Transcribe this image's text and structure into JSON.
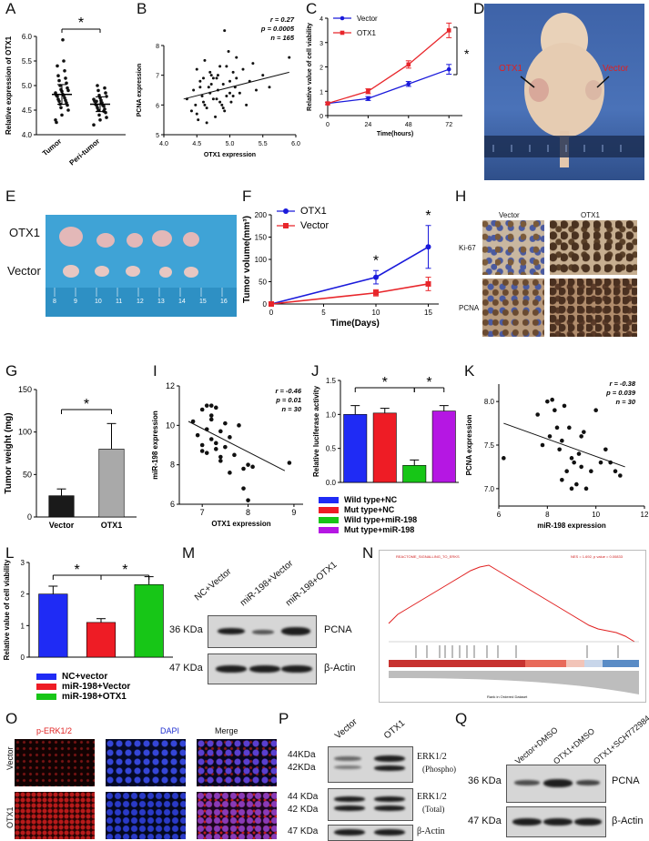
{
  "panels": {
    "A": "A",
    "B": "B",
    "C": "C",
    "D": "D",
    "E": "E",
    "F": "F",
    "G": "G",
    "H": "H",
    "I": "I",
    "J": "J",
    "K": "K",
    "L": "L",
    "M": "M",
    "N": "N",
    "O": "O",
    "P": "P",
    "Q": "Q"
  },
  "chart_data": [
    {
      "id": "A",
      "type": "scatter",
      "title": "",
      "ylabel": "Relative expression of OTX1",
      "ylim": [
        4.0,
        6.0
      ],
      "yticks": [
        "4.0",
        "4.5",
        "5.0",
        "5.5",
        "6.0"
      ],
      "categories": [
        "Tumor",
        "Peri-tumor"
      ],
      "values": [
        [
          4.3,
          4.4,
          4.5,
          4.55,
          4.6,
          4.62,
          4.65,
          4.68,
          4.7,
          4.72,
          4.75,
          4.78,
          4.8,
          4.8,
          4.82,
          4.85,
          4.88,
          4.9,
          4.92,
          4.95,
          5.0,
          5.05,
          5.1,
          5.15,
          5.2,
          5.3,
          5.4,
          5.5,
          4.25,
          5.93
        ],
        [
          4.2,
          4.3,
          4.35,
          4.4,
          4.45,
          4.5,
          4.52,
          4.55,
          4.58,
          4.6,
          4.6,
          4.62,
          4.65,
          4.68,
          4.7,
          4.72,
          4.75,
          4.78,
          4.8,
          4.85,
          4.9,
          4.95,
          5.0,
          4.48,
          4.68
        ]
      ],
      "means": [
        4.82,
        4.62
      ],
      "sem": [
        0.2,
        0.15
      ],
      "sig": "*"
    },
    {
      "id": "B",
      "type": "scatter",
      "xlabel": "OTX1 expression",
      "ylabel": "PCNA expression",
      "xlim": [
        4.0,
        6.0
      ],
      "ylim": [
        5,
        8
      ],
      "xticks": [
        "4.0",
        "4.5",
        "5.0",
        "5.5",
        "6.0"
      ],
      "yticks": [
        "5",
        "6",
        "7",
        "8"
      ],
      "stats": [
        "r = 0.27",
        "p = 0.0005",
        "n = 165"
      ],
      "trend": [
        [
          4.3,
          6.2
        ],
        [
          5.9,
          7.1
        ]
      ],
      "x": [
        4.35,
        4.42,
        4.45,
        4.48,
        4.5,
        4.52,
        4.55,
        4.58,
        4.6,
        4.62,
        4.65,
        4.68,
        4.7,
        4.72,
        4.75,
        4.78,
        4.8,
        4.82,
        4.85,
        4.88,
        4.9,
        4.92,
        4.95,
        4.98,
        5.0,
        5.02,
        5.05,
        5.08,
        5.1,
        5.15,
        5.2,
        5.25,
        5.3,
        5.35,
        5.4,
        5.5,
        5.6,
        5.9,
        4.5,
        4.6,
        4.7,
        4.8,
        4.9,
        5.0,
        5.1,
        4.55,
        4.65,
        4.75,
        4.85,
        4.95,
        5.05,
        4.62,
        4.72,
        4.82,
        4.92
      ],
      "y": [
        6.2,
        5.8,
        6.5,
        6.0,
        7.2,
        5.5,
        6.8,
        6.3,
        6.1,
        7.5,
        5.9,
        6.6,
        6.4,
        7.0,
        6.2,
        5.6,
        6.9,
        6.5,
        7.3,
        6.0,
        6.7,
        8.5,
        6.3,
        7.8,
        6.8,
        6.1,
        7.1,
        6.6,
        6.9,
        6.4,
        7.2,
        6.0,
        6.8,
        7.4,
        6.5,
        7.0,
        6.6,
        7.6,
        5.7,
        6.9,
        7.1,
        6.2,
        5.9,
        6.4,
        7.6,
        6.6,
        5.4,
        6.9,
        6.1,
        7.3,
        6.3,
        6.0,
        6.7,
        7.0,
        5.8
      ]
    },
    {
      "id": "C",
      "type": "line",
      "xlabel": "Time(hours)",
      "ylabel": "Relative value of cell viability",
      "x": [
        0,
        24,
        48,
        72
      ],
      "xlim": [
        0,
        80
      ],
      "ylim": [
        0,
        4
      ],
      "xticks": [
        "0",
        "24",
        "48",
        "72"
      ],
      "yticks": [
        "0",
        "1",
        "2",
        "3",
        "4"
      ],
      "series": [
        {
          "name": "Vector",
          "values": [
            0.5,
            0.7,
            1.3,
            1.9
          ],
          "err": [
            0.05,
            0.08,
            0.1,
            0.2
          ],
          "color": "#1a1adb"
        },
        {
          "name": "OTX1",
          "values": [
            0.5,
            1.0,
            2.1,
            3.5
          ],
          "err": [
            0.05,
            0.1,
            0.15,
            0.3
          ],
          "color": "#e8262b"
        }
      ],
      "sig": "*"
    },
    {
      "id": "F",
      "type": "line",
      "xlabel": "Time(Days)",
      "ylabel": "Tumor volume(mm³)",
      "x": [
        0,
        10,
        15
      ],
      "xlim": [
        0,
        16
      ],
      "ylim": [
        0,
        200
      ],
      "xticks": [
        "0",
        "5",
        "10",
        "15"
      ],
      "yticks": [
        "0",
        "50",
        "100",
        "150",
        "200"
      ],
      "series": [
        {
          "name": "OTX1",
          "values": [
            0,
            60,
            128
          ],
          "err": [
            0,
            15,
            48
          ],
          "color": "#1a1adb"
        },
        {
          "name": "Vector",
          "values": [
            0,
            25,
            45
          ],
          "err": [
            0,
            7,
            15
          ],
          "color": "#e8262b"
        }
      ],
      "sig": [
        "*",
        "*"
      ]
    },
    {
      "id": "G",
      "type": "bar",
      "ylabel": "Tumor weight (mg)",
      "categories": [
        "Vector",
        "OTX1"
      ],
      "values": [
        25,
        80
      ],
      "err": [
        8,
        30
      ],
      "ylim": [
        0,
        150
      ],
      "yticks": [
        "0",
        "50",
        "100",
        "150"
      ],
      "sig": "*"
    },
    {
      "id": "I",
      "type": "scatter",
      "xlabel": "OTX1 expression",
      "ylabel": "miR-198 expression",
      "xlim": [
        6.5,
        9.2
      ],
      "ylim": [
        6,
        12
      ],
      "xticks": [
        "7",
        "8",
        "9"
      ],
      "yticks": [
        "6",
        "8",
        "10",
        "12"
      ],
      "stats": [
        "r = -0.46",
        "p = 0.01",
        "n = 30"
      ],
      "trend": [
        [
          6.7,
          10.2
        ],
        [
          8.8,
          7.7
        ]
      ],
      "x": [
        6.8,
        6.9,
        7.0,
        7.0,
        7.1,
        7.1,
        7.2,
        7.2,
        7.3,
        7.3,
        7.4,
        7.4,
        7.5,
        7.5,
        7.6,
        7.7,
        7.8,
        7.9,
        8.0,
        8.0,
        8.1,
        7.0,
        7.1,
        7.2,
        7.3,
        7.4,
        7.6,
        8.9,
        7.9,
        7.2
      ],
      "y": [
        10.2,
        9.5,
        10.8,
        9.0,
        11.0,
        8.6,
        10.5,
        9.3,
        8.8,
        10.9,
        9.7,
        8.2,
        10.1,
        8.9,
        9.4,
        8.5,
        10.0,
        7.8,
        8.0,
        6.2,
        7.9,
        8.7,
        9.8,
        10.3,
        9.1,
        8.4,
        7.6,
        8.1,
        6.8,
        11.0
      ]
    },
    {
      "id": "J",
      "type": "bar",
      "ylabel": "Relative luciferase activity",
      "categories": [
        "Wild type+NC",
        "Mut type+NC",
        "Wild type+miR-198",
        "Mut type+miR-198"
      ],
      "values": [
        1.0,
        1.02,
        0.25,
        1.05
      ],
      "err": [
        0.13,
        0.07,
        0.08,
        0.08
      ],
      "colors": [
        "#1f2bf5",
        "#ee1c25",
        "#17c617",
        "#b517e3"
      ],
      "ylim": [
        0,
        1.5
      ],
      "yticks": [
        "0.0",
        "0.5",
        "1.0",
        "1.5"
      ],
      "sig": [
        "*",
        "*"
      ]
    },
    {
      "id": "K",
      "type": "scatter",
      "xlabel": "miR-198 expression",
      "ylabel": "PCNA expression",
      "xlim": [
        6,
        12
      ],
      "ylim": [
        6.8,
        8.2
      ],
      "xticks": [
        "6",
        "8",
        "10",
        "12"
      ],
      "yticks": [
        "7.0",
        "7.5",
        "8.0"
      ],
      "stats": [
        "r = -0.38",
        "p = 0.039",
        "n = 30"
      ],
      "trend": [
        [
          6.2,
          7.75
        ],
        [
          11.2,
          7.25
        ]
      ],
      "x": [
        6.2,
        7.6,
        7.8,
        8.0,
        8.1,
        8.2,
        8.3,
        8.4,
        8.5,
        8.6,
        8.7,
        8.8,
        8.9,
        9.0,
        9.1,
        9.2,
        9.3,
        9.4,
        9.5,
        9.6,
        9.8,
        10.0,
        10.2,
        10.4,
        10.6,
        10.8,
        11.0,
        8.6,
        9.0,
        9.4
      ],
      "y": [
        7.35,
        7.85,
        7.5,
        8.0,
        7.6,
        8.02,
        7.9,
        7.7,
        7.45,
        7.55,
        7.95,
        7.2,
        7.7,
        7.0,
        7.3,
        7.05,
        7.4,
        7.25,
        7.65,
        7.0,
        7.2,
        7.9,
        7.3,
        7.45,
        7.3,
        7.2,
        7.15,
        7.1,
        7.35,
        7.6
      ]
    },
    {
      "id": "L",
      "type": "bar",
      "ylabel": "Relative value of cell viability",
      "categories": [
        "NC+vector",
        "miR-198+Vector",
        "miR-198+OTX1"
      ],
      "values": [
        2.0,
        1.1,
        2.3
      ],
      "err": [
        0.25,
        0.12,
        0.25
      ],
      "colors": [
        "#1f2bf5",
        "#ee1c25",
        "#17c617"
      ],
      "ylim": [
        0,
        3
      ],
      "yticks": [
        "0",
        "1",
        "2",
        "3"
      ],
      "sig": [
        "*",
        "*"
      ]
    }
  ],
  "panelD": {
    "otx1": "OTX1",
    "vector": "Vector"
  },
  "panelE": {
    "row1": "OTX1",
    "row2": "Vector",
    "ruler": [
      "8",
      "9",
      "10",
      "11",
      "12",
      "13",
      "14",
      "15",
      "16"
    ]
  },
  "panelH": {
    "col1": "Vector",
    "col2": "OTX1",
    "row1": "Ki-67",
    "row2": "PCNA"
  },
  "panelM": {
    "lanes": [
      "NC+Vector",
      "miR-198+Vector",
      "miR-198+OTX1"
    ],
    "mw1": "36 KDa",
    "mw2": "47 KDa",
    "p1": "PCNA",
    "p2": "β-Actin"
  },
  "panelN": {
    "title": "REACTOME_SIGNALLING_TO_ERKS",
    "stat": "NES = 1.692, p value = 0.00833",
    "xlab": "Rank in Ordered Dataset"
  },
  "panelO": {
    "c1": "p-ERK1/2",
    "c2": "DAPI",
    "c3": "Merge",
    "r1": "Vector",
    "r2": "OTX1"
  },
  "panelP": {
    "lanes": [
      "Vector",
      "OTX1"
    ],
    "mw1a": "44KDa",
    "mw1b": "42KDa",
    "mw2a": "44 KDa",
    "mw2b": "42 KDa",
    "mw3": "47 KDa",
    "p1": "ERK1/2",
    "p1b": "(Phospho)",
    "p2": "ERK1/2",
    "p2b": "(Total)",
    "p3": "β-Actin"
  },
  "panelQ": {
    "lanes": [
      "Vector+DMSO",
      "OTX1+DMSO",
      "OTX1+SCH772984"
    ],
    "mw1": "36 KDa",
    "mw2": "47 KDa",
    "p1": "PCNA",
    "p2": "β-Actin"
  }
}
